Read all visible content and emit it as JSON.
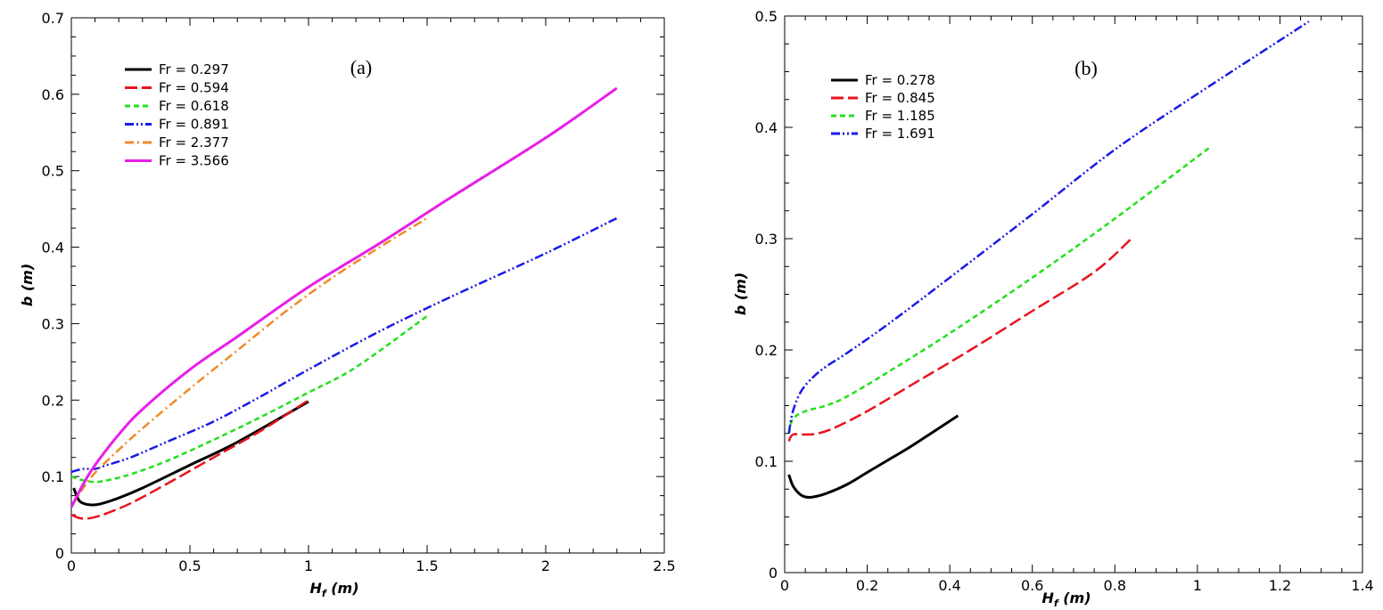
{
  "colors": {
    "black": "#000000",
    "red": "#e8141e",
    "green": "#22e01c",
    "blue": "#1a1ae8",
    "orange": "#f08a2a",
    "magenta": "#e81ee8"
  },
  "chart_data": [
    {
      "type": "line",
      "panel": "(a)",
      "xlabel": "H",
      "xlabel_sub": "f",
      "xlabel_unit": " (m)",
      "ylabel": "b (m)",
      "xlim": [
        0,
        2.5
      ],
      "ylim": [
        0,
        0.7
      ],
      "xticks": [
        0,
        0.5,
        1,
        1.5,
        2,
        2.5
      ],
      "xtick_labels": [
        "0",
        "0.5",
        "1",
        "1.5",
        "2",
        "2.5"
      ],
      "yticks": [
        0,
        0.1,
        0.2,
        0.3,
        0.4,
        0.5,
        0.6,
        0.7
      ],
      "ytick_labels": [
        "0",
        "0.1",
        "0.2",
        "0.3",
        "0.4",
        "0.5",
        "0.6",
        "0.7"
      ],
      "legend_position": "top-left",
      "series": [
        {
          "name": "Fr = 0.297",
          "color": "#000000",
          "dash": "solid",
          "x": [
            0.01,
            0.03,
            0.05,
            0.08,
            0.12,
            0.2,
            0.3,
            0.5,
            0.7,
            1.0
          ],
          "y": [
            0.085,
            0.07,
            0.065,
            0.063,
            0.064,
            0.072,
            0.085,
            0.115,
            0.145,
            0.198
          ]
        },
        {
          "name": "Fr = 0.594",
          "color": "#e8141e",
          "dash": "longdash",
          "x": [
            0.0,
            0.03,
            0.06,
            0.1,
            0.15,
            0.25,
            0.4,
            0.6,
            0.8,
            1.0
          ],
          "y": [
            0.05,
            0.046,
            0.045,
            0.047,
            0.052,
            0.065,
            0.09,
            0.125,
            0.16,
            0.2
          ]
        },
        {
          "name": "Fr = 0.618",
          "color": "#22e01c",
          "dash": "dash",
          "x": [
            0.0,
            0.05,
            0.1,
            0.15,
            0.25,
            0.4,
            0.6,
            0.8,
            1.0,
            1.2,
            1.5
          ],
          "y": [
            0.1,
            0.095,
            0.093,
            0.095,
            0.103,
            0.12,
            0.148,
            0.178,
            0.21,
            0.243,
            0.31
          ]
        },
        {
          "name": "Fr = 0.891",
          "color": "#1a1ae8",
          "dash": "dashdotdot",
          "x": [
            0.0,
            0.05,
            0.1,
            0.15,
            0.25,
            0.4,
            0.6,
            0.8,
            1.0,
            1.3,
            1.6,
            2.0,
            2.3
          ],
          "y": [
            0.106,
            0.11,
            0.11,
            0.115,
            0.125,
            0.145,
            0.172,
            0.205,
            0.24,
            0.29,
            0.335,
            0.392,
            0.438
          ]
        },
        {
          "name": "Fr = 2.377",
          "color": "#f08a2a",
          "dash": "dashdot",
          "x": [
            0.0,
            0.05,
            0.1,
            0.2,
            0.3,
            0.5,
            0.7,
            0.9,
            1.1,
            1.3,
            1.5
          ],
          "y": [
            0.06,
            0.085,
            0.105,
            0.135,
            0.163,
            0.215,
            0.265,
            0.315,
            0.36,
            0.4,
            0.438
          ]
        },
        {
          "name": "Fr = 3.566",
          "color": "#e81ee8",
          "dash": "solid",
          "x": [
            0.0,
            0.05,
            0.1,
            0.2,
            0.3,
            0.5,
            0.7,
            1.0,
            1.3,
            1.6,
            2.0,
            2.3
          ],
          "y": [
            0.06,
            0.09,
            0.115,
            0.155,
            0.188,
            0.24,
            0.283,
            0.348,
            0.405,
            0.465,
            0.543,
            0.608
          ]
        }
      ]
    },
    {
      "type": "line",
      "panel": "(b)",
      "xlabel": "H",
      "xlabel_sub": "f",
      "xlabel_unit": " (m)",
      "ylabel": "b (m)",
      "xlim": [
        0,
        1.4
      ],
      "ylim": [
        0,
        0.5
      ],
      "xticks": [
        0,
        0.2,
        0.4,
        0.6,
        0.8,
        1.0,
        1.2,
        1.4
      ],
      "xtick_labels": [
        "0",
        "0.2",
        "0.4",
        "0.6",
        "0.8",
        "1",
        "1.2",
        "1.4"
      ],
      "yticks": [
        0,
        0.1,
        0.2,
        0.3,
        0.4,
        0.5
      ],
      "ytick_labels": [
        "0",
        "0.1",
        "0.2",
        "0.3",
        "0.4",
        "0.5"
      ],
      "legend_position": "top-left",
      "series": [
        {
          "name": "Fr = 0.278",
          "color": "#000000",
          "dash": "solid",
          "x": [
            0.01,
            0.02,
            0.035,
            0.05,
            0.07,
            0.1,
            0.15,
            0.2,
            0.25,
            0.3,
            0.35,
            0.42
          ],
          "y": [
            0.088,
            0.078,
            0.071,
            0.068,
            0.068,
            0.071,
            0.079,
            0.09,
            0.101,
            0.112,
            0.124,
            0.141
          ]
        },
        {
          "name": "Fr = 0.845",
          "color": "#e8141e",
          "dash": "longdash",
          "x": [
            0.01,
            0.02,
            0.05,
            0.08,
            0.12,
            0.2,
            0.3,
            0.45,
            0.6,
            0.75,
            0.84
          ],
          "y": [
            0.118,
            0.124,
            0.124,
            0.125,
            0.13,
            0.145,
            0.167,
            0.2,
            0.235,
            0.27,
            0.3
          ]
        },
        {
          "name": "Fr = 1.185",
          "color": "#22e01c",
          "dash": "dash",
          "x": [
            0.01,
            0.02,
            0.05,
            0.1,
            0.15,
            0.25,
            0.4,
            0.6,
            0.8,
            1.03
          ],
          "y": [
            0.125,
            0.138,
            0.145,
            0.15,
            0.158,
            0.18,
            0.215,
            0.265,
            0.318,
            0.382
          ]
        },
        {
          "name": "Fr = 1.691",
          "color": "#1a1ae8",
          "dash": "dashdotdot",
          "x": [
            0.01,
            0.02,
            0.04,
            0.07,
            0.1,
            0.15,
            0.25,
            0.4,
            0.6,
            0.8,
            1.0,
            1.27
          ],
          "y": [
            0.125,
            0.145,
            0.163,
            0.176,
            0.185,
            0.197,
            0.223,
            0.265,
            0.322,
            0.38,
            0.43,
            0.495
          ]
        }
      ]
    }
  ]
}
